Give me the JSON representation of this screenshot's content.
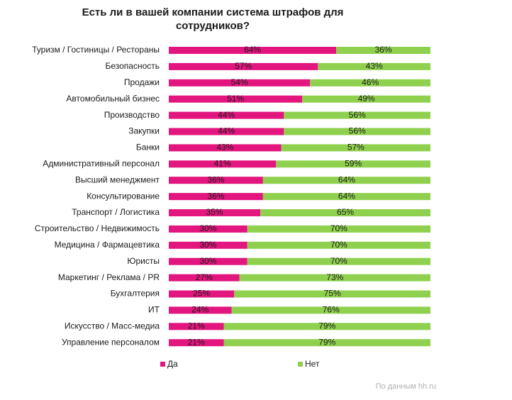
{
  "chart_data": {
    "type": "stacked-bar-horizontal",
    "title": [
      "Есть ли в вашей компании система штрафов для",
      "сотрудников?"
    ],
    "categories": [
      "Туризм / Гостиницы / Рестораны",
      "Безопасность",
      "Продажи",
      "Автомобильный бизнес",
      "Производство",
      "Закупки",
      "Банки",
      "Административный персонал",
      "Высший менеджмент",
      "Консультирование",
      "Транспорт / Логистика",
      "Строительство / Недвижимость",
      "Медицина / Фармацевтика",
      "Юристы",
      "Маркетинг / Реклама / PR",
      "Бухгалтерия",
      "ИТ",
      "Искусство / Масс-медиа",
      "Управление персоналом"
    ],
    "series": [
      {
        "name": "Да",
        "color": "#e2167e",
        "values": [
          64,
          57,
          54,
          51,
          44,
          44,
          43,
          41,
          36,
          36,
          35,
          30,
          30,
          30,
          27,
          25,
          24,
          21,
          21
        ],
        "value_labels": [
          "64%",
          "57%",
          "54%",
          "51%",
          "44%",
          "44%",
          "43%",
          "41%",
          "36%",
          "36%",
          "35%",
          "30%",
          "30%",
          "30%",
          "27%",
          "25%",
          "24%",
          "21%",
          "21%"
        ]
      },
      {
        "name": "Нет",
        "color": "#8fd14f",
        "values": [
          36,
          43,
          46,
          49,
          56,
          56,
          57,
          59,
          64,
          64,
          65,
          70,
          70,
          70,
          73,
          75,
          76,
          79,
          79
        ],
        "value_labels": [
          "36%",
          "43%",
          "46%",
          "49%",
          "56%",
          "56%",
          "57%",
          "59%",
          "64%",
          "64%",
          "65%",
          "70%",
          "70%",
          "70%",
          "73%",
          "75%",
          "76%",
          "79%",
          "79%"
        ]
      }
    ],
    "xlim": [
      0,
      100
    ],
    "source": "По данным hh.ru"
  }
}
